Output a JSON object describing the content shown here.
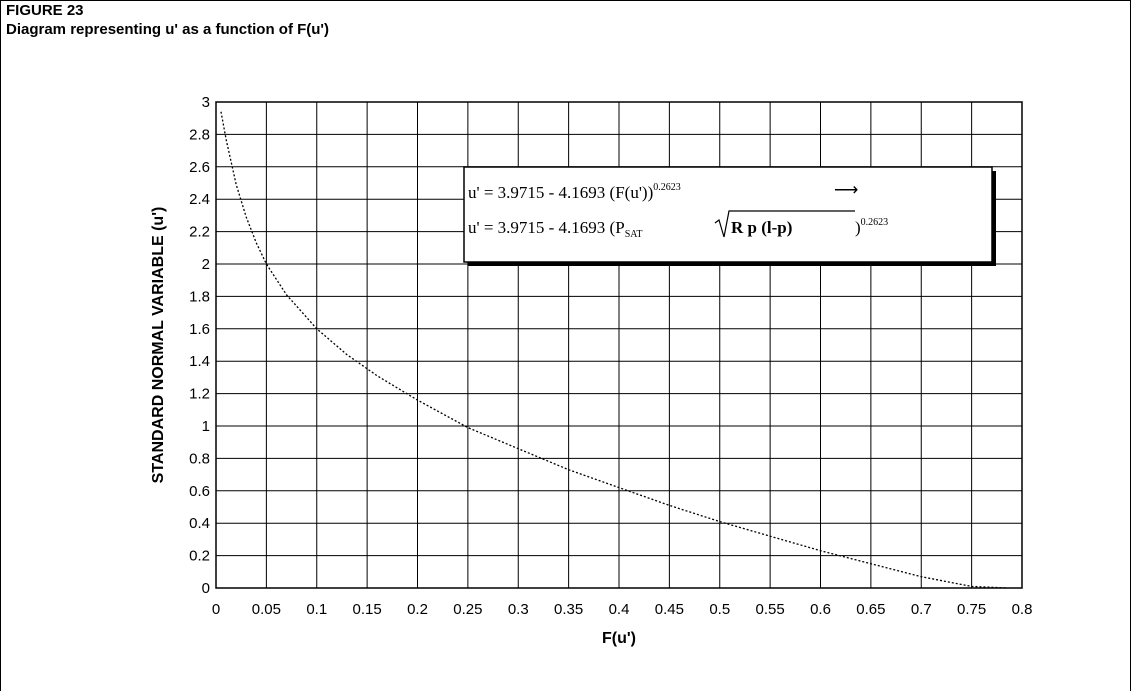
{
  "figure": {
    "number": "FIGURE 23",
    "caption": "Diagram representing u' as a function of F(u')"
  },
  "chart_data": {
    "type": "line",
    "xlabel": "F(u')",
    "ylabel": "STANDARD NORMAL VARIABLE (u')",
    "xlim": [
      0,
      0.8
    ],
    "ylim": [
      0,
      3
    ],
    "x_ticks": [
      "0",
      "0.05",
      "0.1",
      "0.15",
      "0.2",
      "0.25",
      "0.3",
      "0.35",
      "0.4",
      "0.45",
      "0.5",
      "0.55",
      "0.6",
      "0.65",
      "0.7",
      "0.75",
      "0.8"
    ],
    "y_ticks": [
      "0",
      "0.2",
      "0.4",
      "0.6",
      "0.8",
      "1",
      "1.2",
      "1.4",
      "1.6",
      "1.8",
      "2",
      "2.2",
      "2.4",
      "2.6",
      "2.8",
      "3"
    ],
    "grid": true,
    "line_style": "dotted",
    "series": [
      {
        "x": [
          0.005,
          0.01,
          0.02,
          0.03,
          0.04,
          0.05,
          0.07,
          0.1,
          0.13,
          0.16,
          0.2,
          0.25,
          0.3,
          0.35,
          0.4,
          0.45,
          0.5,
          0.55,
          0.6,
          0.65,
          0.7,
          0.75,
          0.785
        ],
        "y": [
          2.94,
          2.77,
          2.49,
          2.29,
          2.13,
          2.0,
          1.81,
          1.6,
          1.44,
          1.31,
          1.16,
          0.99,
          0.86,
          0.73,
          0.62,
          0.51,
          0.41,
          0.32,
          0.23,
          0.15,
          0.07,
          0.01,
          0.0
        ]
      }
    ],
    "annotation": {
      "line1": {
        "main": "u' = 3.9715 - 4.1693 (F(u'))",
        "sup": "0.2623",
        "arrow": "⟶"
      },
      "line2": {
        "prefix": "u' = 3.9715 - 4.1693  (P",
        "sub": "SAT",
        "radicand": "R p  (l-p)",
        "close": ")",
        "sup": "0.2623"
      }
    }
  }
}
